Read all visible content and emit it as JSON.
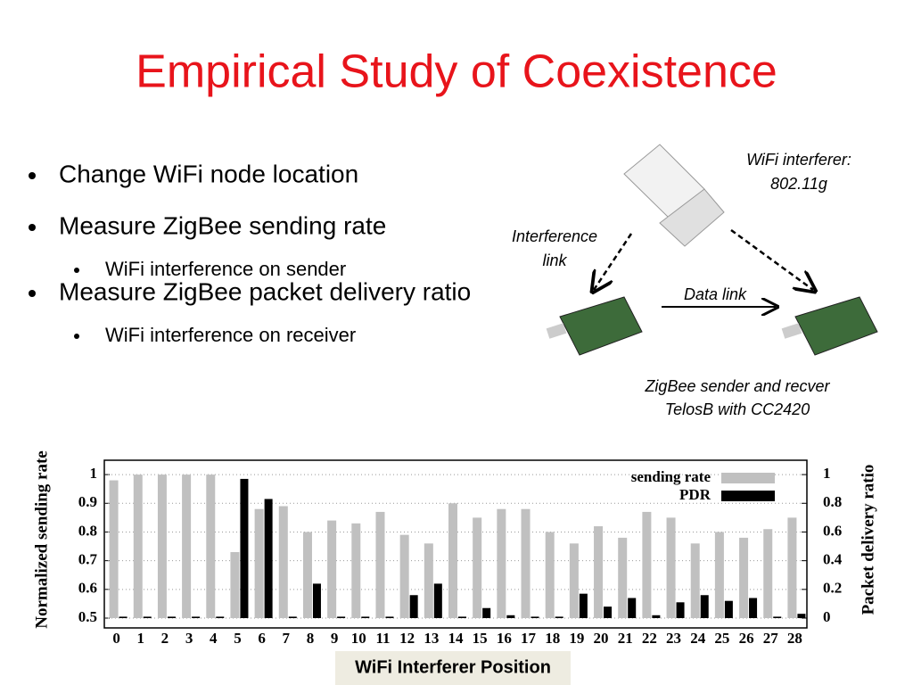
{
  "slide": {
    "title": "Empirical Study of Coexistence",
    "bullets": [
      {
        "text": "Change WiFi node location",
        "sub": []
      },
      {
        "text": "Measure ZigBee sending rate",
        "sub": [
          "WiFi interference on sender"
        ]
      },
      {
        "text": "Measure ZigBee packet delivery ratio",
        "sub": [
          "WiFi interference on receiver"
        ]
      }
    ],
    "diagram": {
      "wifi_label": [
        "WiFi interferer:",
        "802.11g"
      ],
      "interference_label": [
        "Interference",
        "link"
      ],
      "data_link_label": "Data link",
      "zigbee_label": [
        "ZigBee sender and recver",
        "TelosB with CC2420"
      ]
    }
  },
  "chart_data": {
    "type": "bar",
    "xlabel": "WiFi Interferer Position",
    "ylabel": "Normalized sending rate",
    "y2label": "Packet delivery ratio",
    "categories": [
      "0",
      "1",
      "2",
      "3",
      "4",
      "5",
      "6",
      "7",
      "8",
      "9",
      "10",
      "11",
      "12",
      "13",
      "14",
      "15",
      "16",
      "17",
      "18",
      "19",
      "20",
      "21",
      "22",
      "23",
      "24",
      "25",
      "26",
      "27",
      "28"
    ],
    "series": [
      {
        "name": "sending rate",
        "color": "#c0c0c0",
        "axis": "y",
        "values": [
          0.98,
          1.0,
          1.0,
          1.0,
          1.0,
          0.73,
          0.88,
          0.89,
          0.8,
          0.84,
          0.83,
          0.87,
          0.79,
          0.76,
          0.9,
          0.85,
          0.88,
          0.88,
          0.8,
          0.76,
          0.82,
          0.78,
          0.87,
          0.85,
          0.76,
          0.8,
          0.78,
          0.81,
          0.85
        ]
      },
      {
        "name": "PDR",
        "color": "#000000",
        "axis": "y2",
        "values": [
          0.01,
          0.01,
          0.01,
          0.01,
          0.01,
          0.97,
          0.83,
          0.01,
          0.24,
          0.01,
          0.01,
          0.01,
          0.16,
          0.24,
          0.01,
          0.07,
          0.02,
          0.01,
          0.01,
          0.17,
          0.08,
          0.14,
          0.02,
          0.11,
          0.16,
          0.12,
          0.14,
          0.01,
          0.03
        ]
      }
    ],
    "ylim": [
      0.5,
      1.05
    ],
    "yticks": [
      0.5,
      0.6,
      0.7,
      0.8,
      0.9,
      1
    ],
    "y2lim": [
      0,
      1.1
    ],
    "y2ticks": [
      0,
      0.2,
      0.4,
      0.6,
      0.8,
      1
    ],
    "grid": true,
    "legend": "upper right"
  }
}
